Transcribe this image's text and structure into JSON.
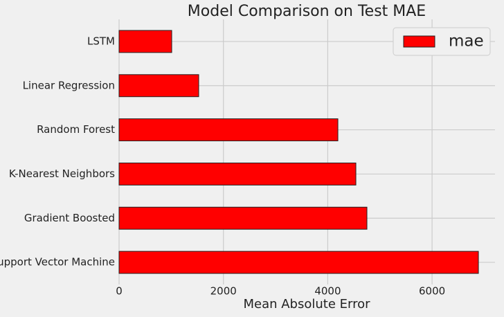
{
  "chart_data": {
    "type": "bar",
    "orientation": "horizontal",
    "title": "Model Comparison on Test MAE",
    "x_label": "Mean Absolute Error",
    "categories": [
      "LSTM",
      "Linear Regression",
      "Random Forest",
      "K-Nearest Neighbors",
      "Gradient Boosted",
      "Support Vector Machine"
    ],
    "series": [
      {
        "name": "mae",
        "color": "#ff0000",
        "values": [
          1009,
          1526,
          4194,
          4539,
          4751,
          6888
        ]
      }
    ],
    "xlim": [
      0,
      7206
    ],
    "xticks": [
      0,
      2000,
      4000,
      6000
    ],
    "grid": true,
    "legend": "upper right"
  }
}
